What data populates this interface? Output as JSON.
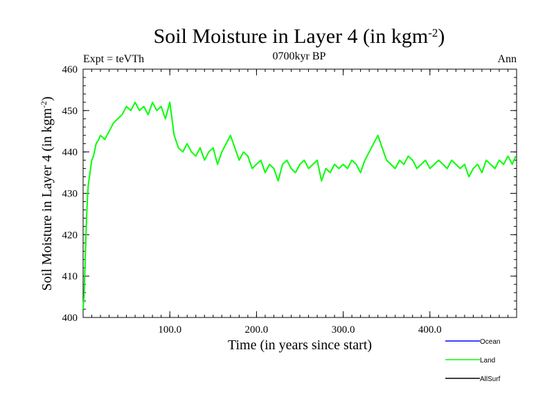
{
  "chart_data": {
    "type": "line",
    "title": "Soil Moisture in Layer 4 (in kgm",
    "title_sup": "-2",
    "title_close": ")",
    "subtitle_left": "Expt = teVTh",
    "subtitle_center": "0700kyr BP",
    "subtitle_right": "Ann",
    "xlabel": "Time (in years since start)",
    "ylabel": "Soil Moisture in Layer 4 (in kgm",
    "ylabel_sup": "-2",
    "ylabel_close": ")",
    "xlim": [
      0,
      500
    ],
    "ylim": [
      400,
      460
    ],
    "xticks": [
      100,
      200,
      300,
      400
    ],
    "xtick_labels": [
      "100.0",
      "200.0",
      "300.0",
      "400.0"
    ],
    "yticks": [
      400,
      410,
      420,
      430,
      440,
      450,
      460
    ],
    "ytick_labels": [
      "400",
      "410",
      "420",
      "430",
      "440",
      "450",
      "460"
    ],
    "legend_position": "bottom-right",
    "series": [
      {
        "name": "Ocean",
        "color": "#0000ff",
        "x": [],
        "y": []
      },
      {
        "name": "Land",
        "color": "#00ff00",
        "x": [
          0,
          1,
          2,
          3,
          4,
          5,
          6,
          8,
          10,
          12,
          15,
          18,
          20,
          25,
          30,
          35,
          40,
          45,
          50,
          55,
          60,
          65,
          70,
          75,
          80,
          85,
          90,
          95,
          100,
          105,
          110,
          115,
          120,
          125,
          130,
          135,
          140,
          145,
          150,
          155,
          160,
          165,
          170,
          175,
          180,
          185,
          190,
          195,
          200,
          205,
          210,
          215,
          220,
          225,
          230,
          235,
          240,
          245,
          250,
          255,
          260,
          265,
          270,
          275,
          280,
          285,
          290,
          295,
          300,
          305,
          310,
          315,
          320,
          325,
          330,
          335,
          340,
          345,
          350,
          355,
          360,
          365,
          370,
          375,
          380,
          385,
          390,
          395,
          400,
          405,
          410,
          415,
          420,
          425,
          430,
          435,
          440,
          445,
          450,
          455,
          460,
          465,
          470,
          475,
          480,
          485,
          490,
          495,
          499
        ],
        "y": [
          402,
          405,
          411,
          418,
          424,
          429,
          432,
          435,
          438,
          439,
          442,
          443,
          444,
          443,
          445,
          447,
          448,
          449,
          451,
          450,
          452,
          450,
          451,
          449,
          452,
          450,
          451,
          448,
          452,
          444,
          441,
          440,
          442,
          440,
          439,
          441,
          438,
          440,
          441,
          437,
          440,
          442,
          444,
          441,
          438,
          440,
          439,
          436,
          437,
          438,
          435,
          437,
          436,
          433,
          437,
          438,
          436,
          435,
          437,
          438,
          436,
          437,
          438,
          433,
          436,
          435,
          437,
          436,
          437,
          436,
          438,
          437,
          435,
          438,
          440,
          442,
          444,
          441,
          438,
          437,
          436,
          438,
          437,
          439,
          438,
          436,
          437,
          438,
          436,
          437,
          438,
          437,
          436,
          438,
          437,
          436,
          437,
          434,
          436,
          437,
          435,
          438,
          437,
          436,
          438,
          437,
          439,
          437,
          439
        ]
      },
      {
        "name": "AllSurf",
        "color": "#000000",
        "x": [],
        "y": []
      }
    ]
  }
}
